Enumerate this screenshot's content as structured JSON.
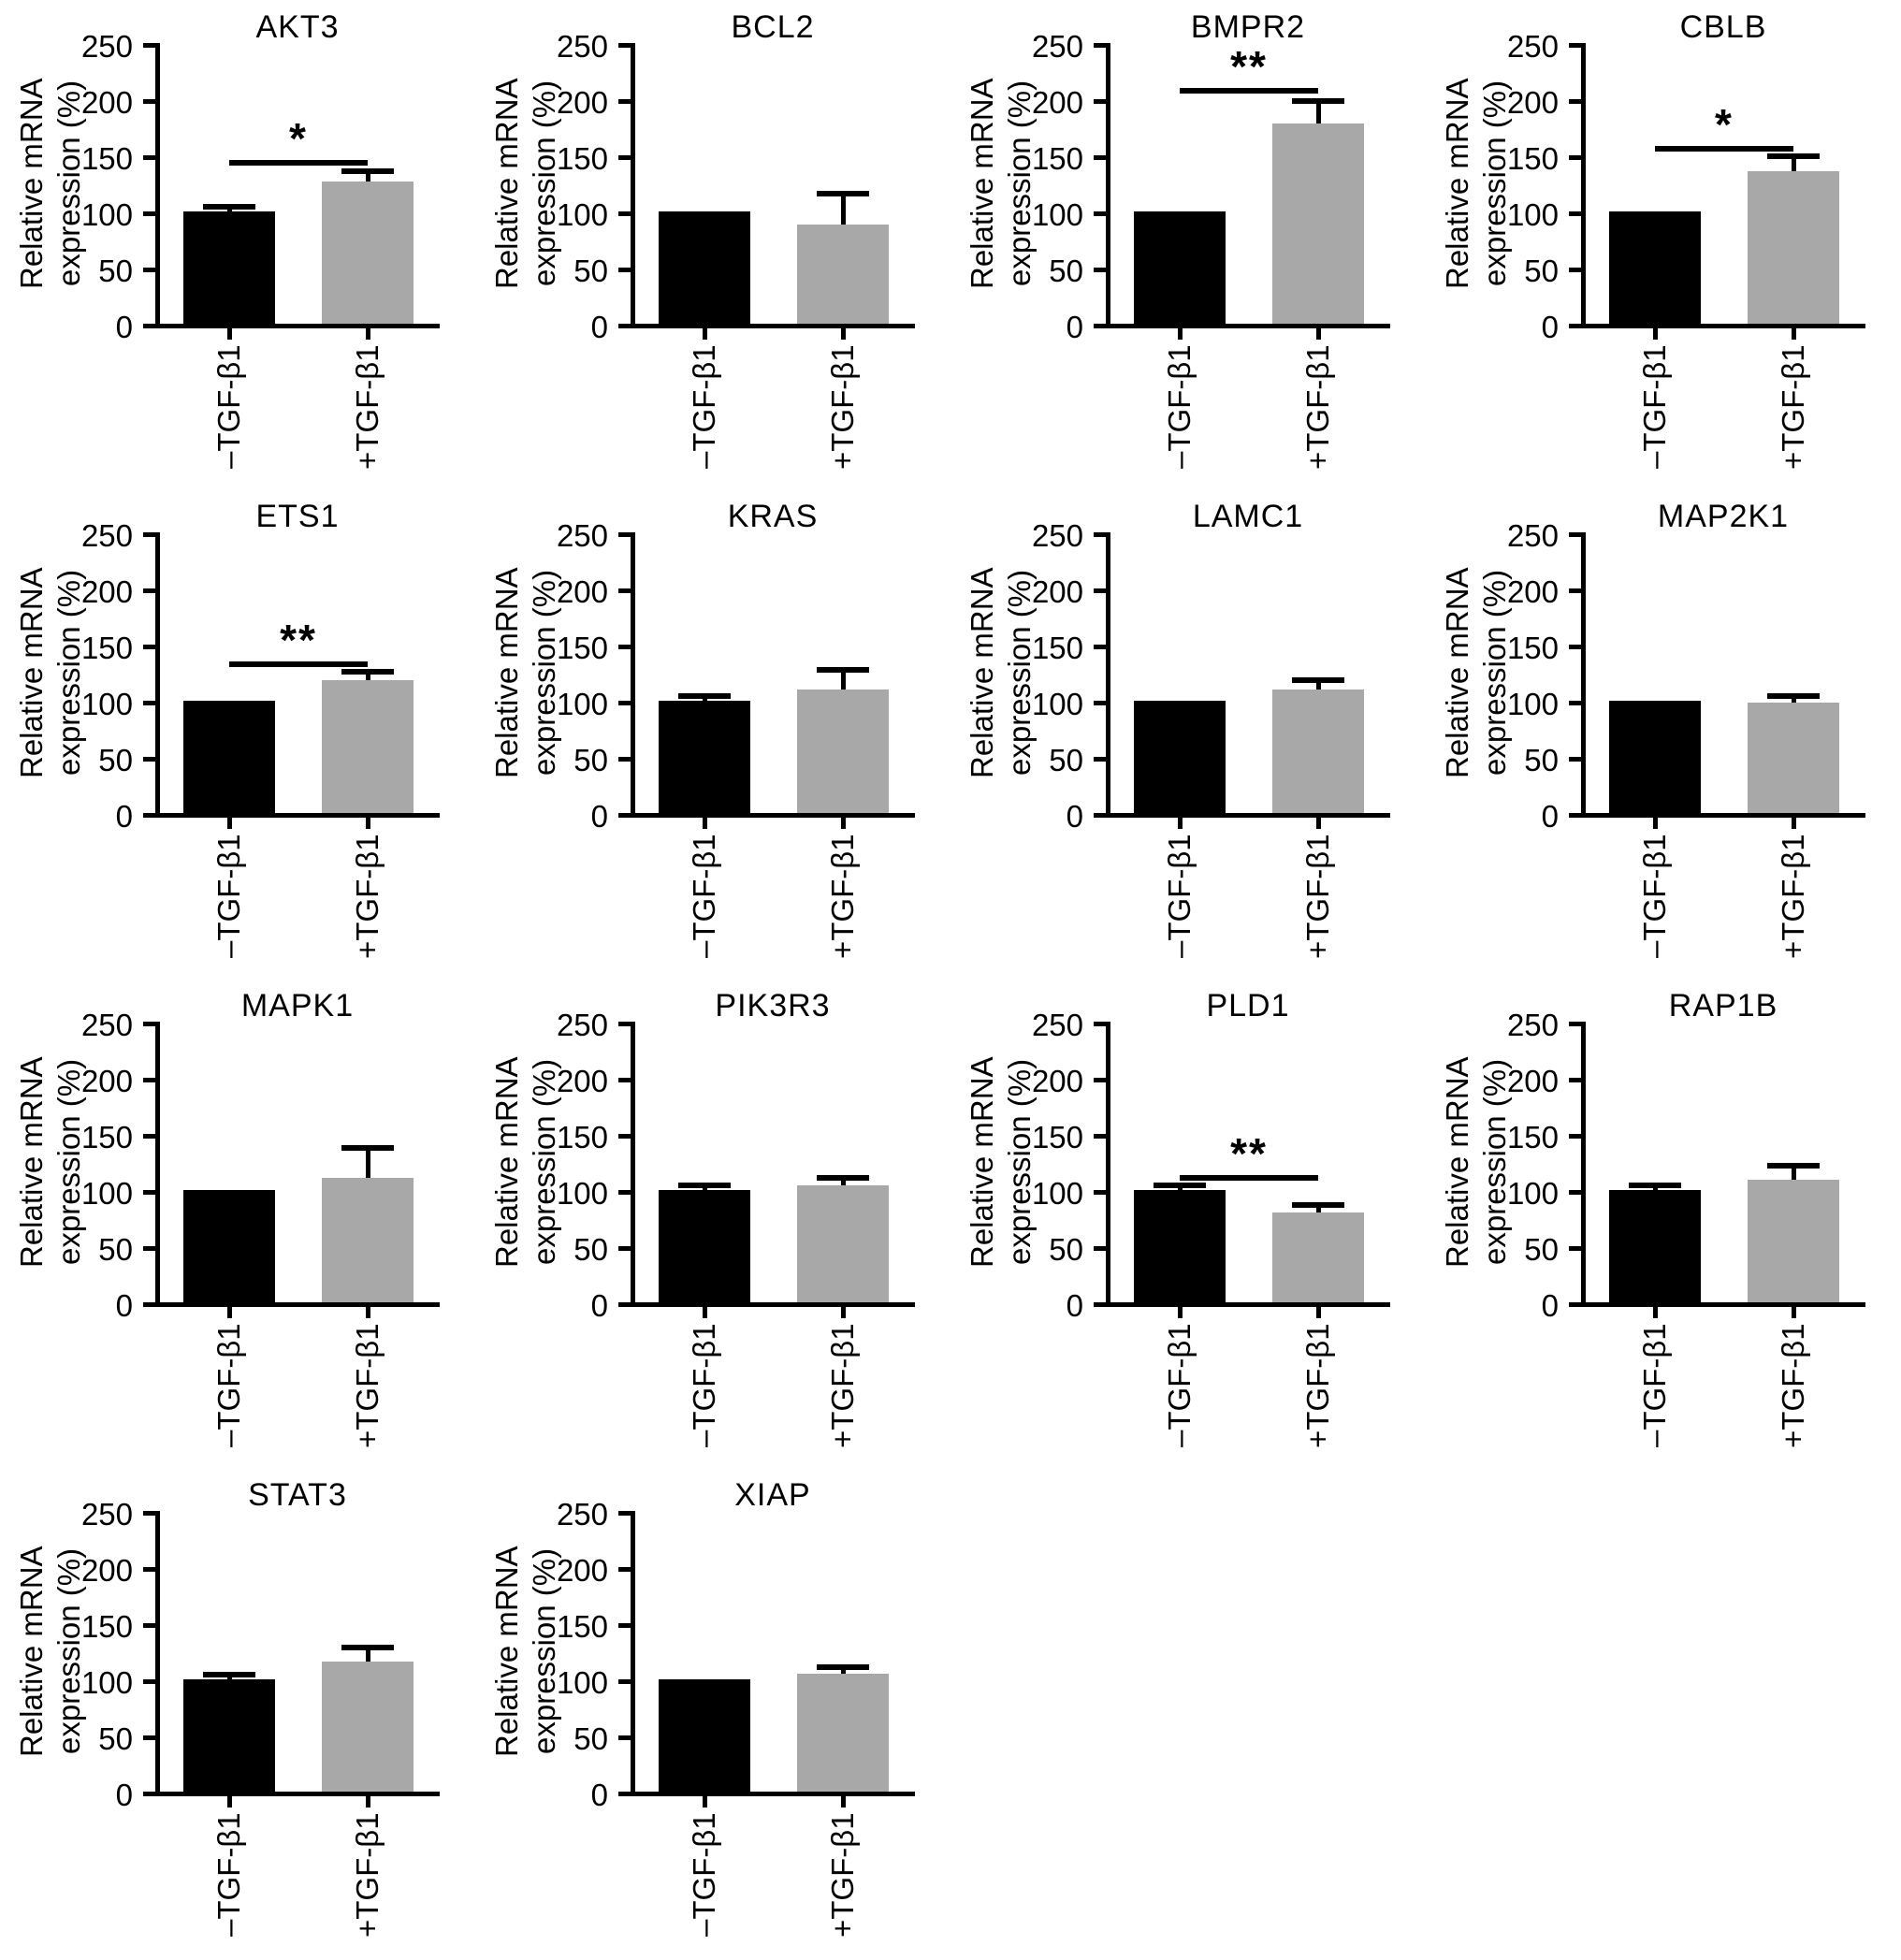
{
  "figure": {
    "ylabel_line1": "Relative mRNA",
    "ylabel_line2": "expression (%)",
    "ylabel": "Relative mRNA expression (%)",
    "yticks": [
      0,
      50,
      100,
      150,
      200,
      250
    ],
    "ylim": [
      0,
      250
    ],
    "categories": [
      "–TGF-β1",
      "+TGF-β1"
    ],
    "bar_colors": [
      "#000000",
      "#a8a8a8"
    ],
    "grid": "off",
    "legend": "none",
    "columns": 4
  },
  "chart_data": [
    {
      "type": "bar",
      "title": "AKT3",
      "categories": [
        "–TGF-β1",
        "+TGF-β1"
      ],
      "values": [
        100,
        127
      ],
      "errors_upper": [
        2,
        6
      ],
      "significance": "*",
      "significance_y": 141,
      "ylim": [
        0,
        250
      ]
    },
    {
      "type": "bar",
      "title": "BCL2",
      "categories": [
        "–TGF-β1",
        "+TGF-β1"
      ],
      "values": [
        100,
        88
      ],
      "errors_upper": [
        0,
        25
      ],
      "significance": null,
      "significance_y": null,
      "ylim": [
        0,
        250
      ]
    },
    {
      "type": "bar",
      "title": "BMPR2",
      "categories": [
        "–TGF-β1",
        "+TGF-β1"
      ],
      "values": [
        100,
        178
      ],
      "errors_upper": [
        0,
        18
      ],
      "significance": "**",
      "significance_y": 205,
      "ylim": [
        0,
        250
      ]
    },
    {
      "type": "bar",
      "title": "CBLB",
      "categories": [
        "–TGF-β1",
        "+TGF-β1"
      ],
      "values": [
        100,
        136
      ],
      "errors_upper": [
        0,
        11
      ],
      "significance": "*",
      "significance_y": 153,
      "ylim": [
        0,
        250
      ]
    },
    {
      "type": "bar",
      "title": "ETS1",
      "categories": [
        "–TGF-β1",
        "+TGF-β1"
      ],
      "values": [
        100,
        118
      ],
      "errors_upper": [
        0,
        5
      ],
      "significance": "**",
      "significance_y": 130,
      "ylim": [
        0,
        250
      ]
    },
    {
      "type": "bar",
      "title": "KRAS",
      "categories": [
        "–TGF-β1",
        "+TGF-β1"
      ],
      "values": [
        100,
        110
      ],
      "errors_upper": [
        2,
        15
      ],
      "significance": null,
      "significance_y": null,
      "ylim": [
        0,
        250
      ]
    },
    {
      "type": "bar",
      "title": "LAMC1",
      "categories": [
        "–TGF-β1",
        "+TGF-β1"
      ],
      "values": [
        100,
        110
      ],
      "errors_upper": [
        0,
        6
      ],
      "significance": null,
      "significance_y": null,
      "ylim": [
        0,
        250
      ]
    },
    {
      "type": "bar",
      "title": "MAP2K1",
      "categories": [
        "–TGF-β1",
        "+TGF-β1"
      ],
      "values": [
        100,
        98
      ],
      "errors_upper": [
        0,
        4
      ],
      "significance": null,
      "significance_y": null,
      "ylim": [
        0,
        250
      ]
    },
    {
      "type": "bar",
      "title": "MAPK1",
      "categories": [
        "–TGF-β1",
        "+TGF-β1"
      ],
      "values": [
        100,
        111
      ],
      "errors_upper": [
        0,
        24
      ],
      "significance": null,
      "significance_y": null,
      "ylim": [
        0,
        250
      ]
    },
    {
      "type": "bar",
      "title": "PIK3R3",
      "categories": [
        "–TGF-β1",
        "+TGF-β1"
      ],
      "values": [
        100,
        104
      ],
      "errors_upper": [
        2,
        4
      ],
      "significance": null,
      "significance_y": null,
      "ylim": [
        0,
        250
      ]
    },
    {
      "type": "bar",
      "title": "PLD1",
      "categories": [
        "–TGF-β1",
        "+TGF-β1"
      ],
      "values": [
        100,
        80
      ],
      "errors_upper": [
        2,
        4
      ],
      "significance": "**",
      "significance_y": 108,
      "ylim": [
        0,
        250
      ]
    },
    {
      "type": "bar",
      "title": "RAP1B",
      "categories": [
        "–TGF-β1",
        "+TGF-β1"
      ],
      "values": [
        100,
        109
      ],
      "errors_upper": [
        2,
        10
      ],
      "significance": null,
      "significance_y": null,
      "ylim": [
        0,
        250
      ]
    },
    {
      "type": "bar",
      "title": "STAT3",
      "categories": [
        "–TGF-β1",
        "+TGF-β1"
      ],
      "values": [
        100,
        116
      ],
      "errors_upper": [
        2,
        10
      ],
      "significance": null,
      "significance_y": null,
      "ylim": [
        0,
        250
      ]
    },
    {
      "type": "bar",
      "title": "XIAP",
      "categories": [
        "–TGF-β1",
        "+TGF-β1"
      ],
      "values": [
        100,
        105
      ],
      "errors_upper": [
        0,
        3
      ],
      "significance": null,
      "significance_y": null,
      "ylim": [
        0,
        250
      ]
    }
  ]
}
